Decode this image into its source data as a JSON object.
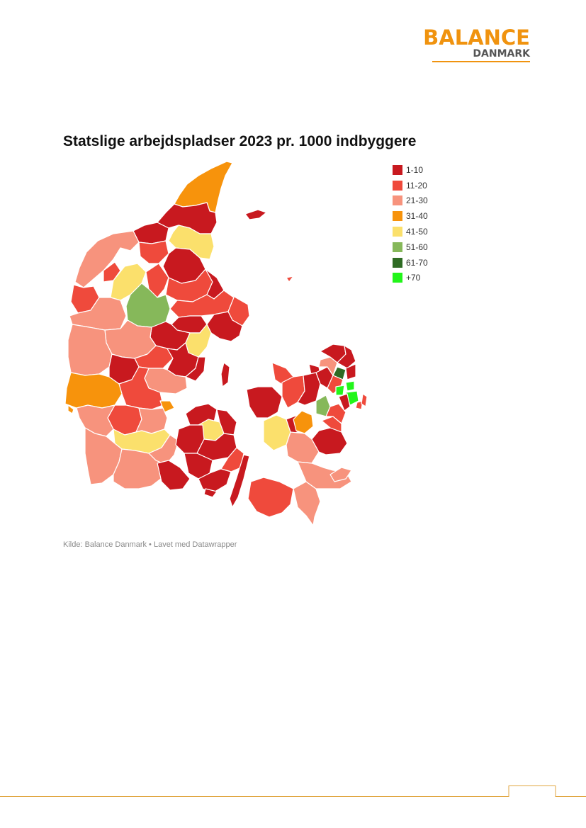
{
  "header": {
    "logo_top": "BALANCE",
    "logo_bottom": "DANMARK",
    "brand_color": "#f0930f"
  },
  "title": "Statslige arbejdspladser 2023 pr. 1000 indbyggere",
  "legend": [
    {
      "label": "1-10",
      "color": "#c8191f"
    },
    {
      "label": "11-20",
      "color": "#ef4a3c"
    },
    {
      "label": "21-30",
      "color": "#f7937d"
    },
    {
      "label": "31-40",
      "color": "#f7930c"
    },
    {
      "label": "41-50",
      "color": "#fbe06c"
    },
    {
      "label": "51-60",
      "color": "#86b85a"
    },
    {
      "label": "61-70",
      "color": "#2f6b24"
    },
    {
      "label": "+70",
      "color": "#22f51a"
    }
  ],
  "source": "Kilde: Balance Danmark • Lavet med Datawrapper"
}
